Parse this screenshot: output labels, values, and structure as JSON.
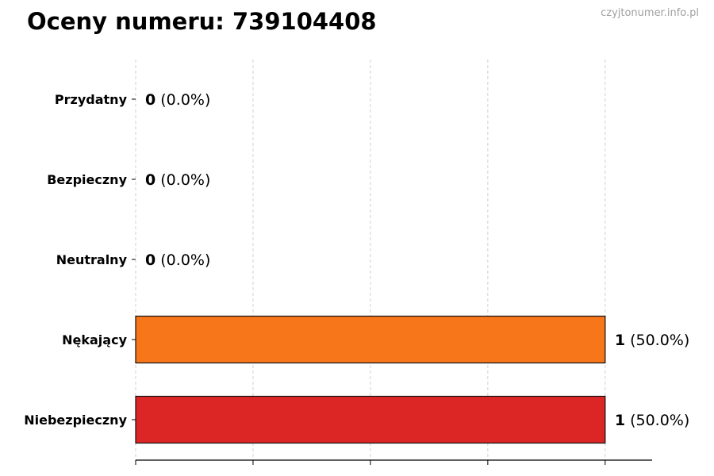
{
  "chart_data": {
    "type": "bar",
    "orientation": "horizontal",
    "title": "Oceny numeru: 739104408",
    "watermark": "czyjtonumer.info.pl",
    "categories": [
      "Przydatny",
      "Bezpieczny",
      "Neutralny",
      "Nękający",
      "Niebezpieczny"
    ],
    "values": [
      0,
      0,
      0,
      1,
      1
    ],
    "percent_labels": [
      "(0.0%)",
      "(0.0%)",
      "(0.0%)",
      "(50.0%)",
      "(50.0%)"
    ],
    "colors": [
      "#2ca02c",
      "#1f77b4",
      "#7f7f7f",
      "#f77619",
      "#dc2626"
    ],
    "xlim": [
      0,
      1.1
    ],
    "x_gridlines": [
      0,
      0.25,
      0.5,
      0.75,
      1.0
    ],
    "grid": "x, dashed",
    "xlabel": "",
    "ylabel": ""
  }
}
